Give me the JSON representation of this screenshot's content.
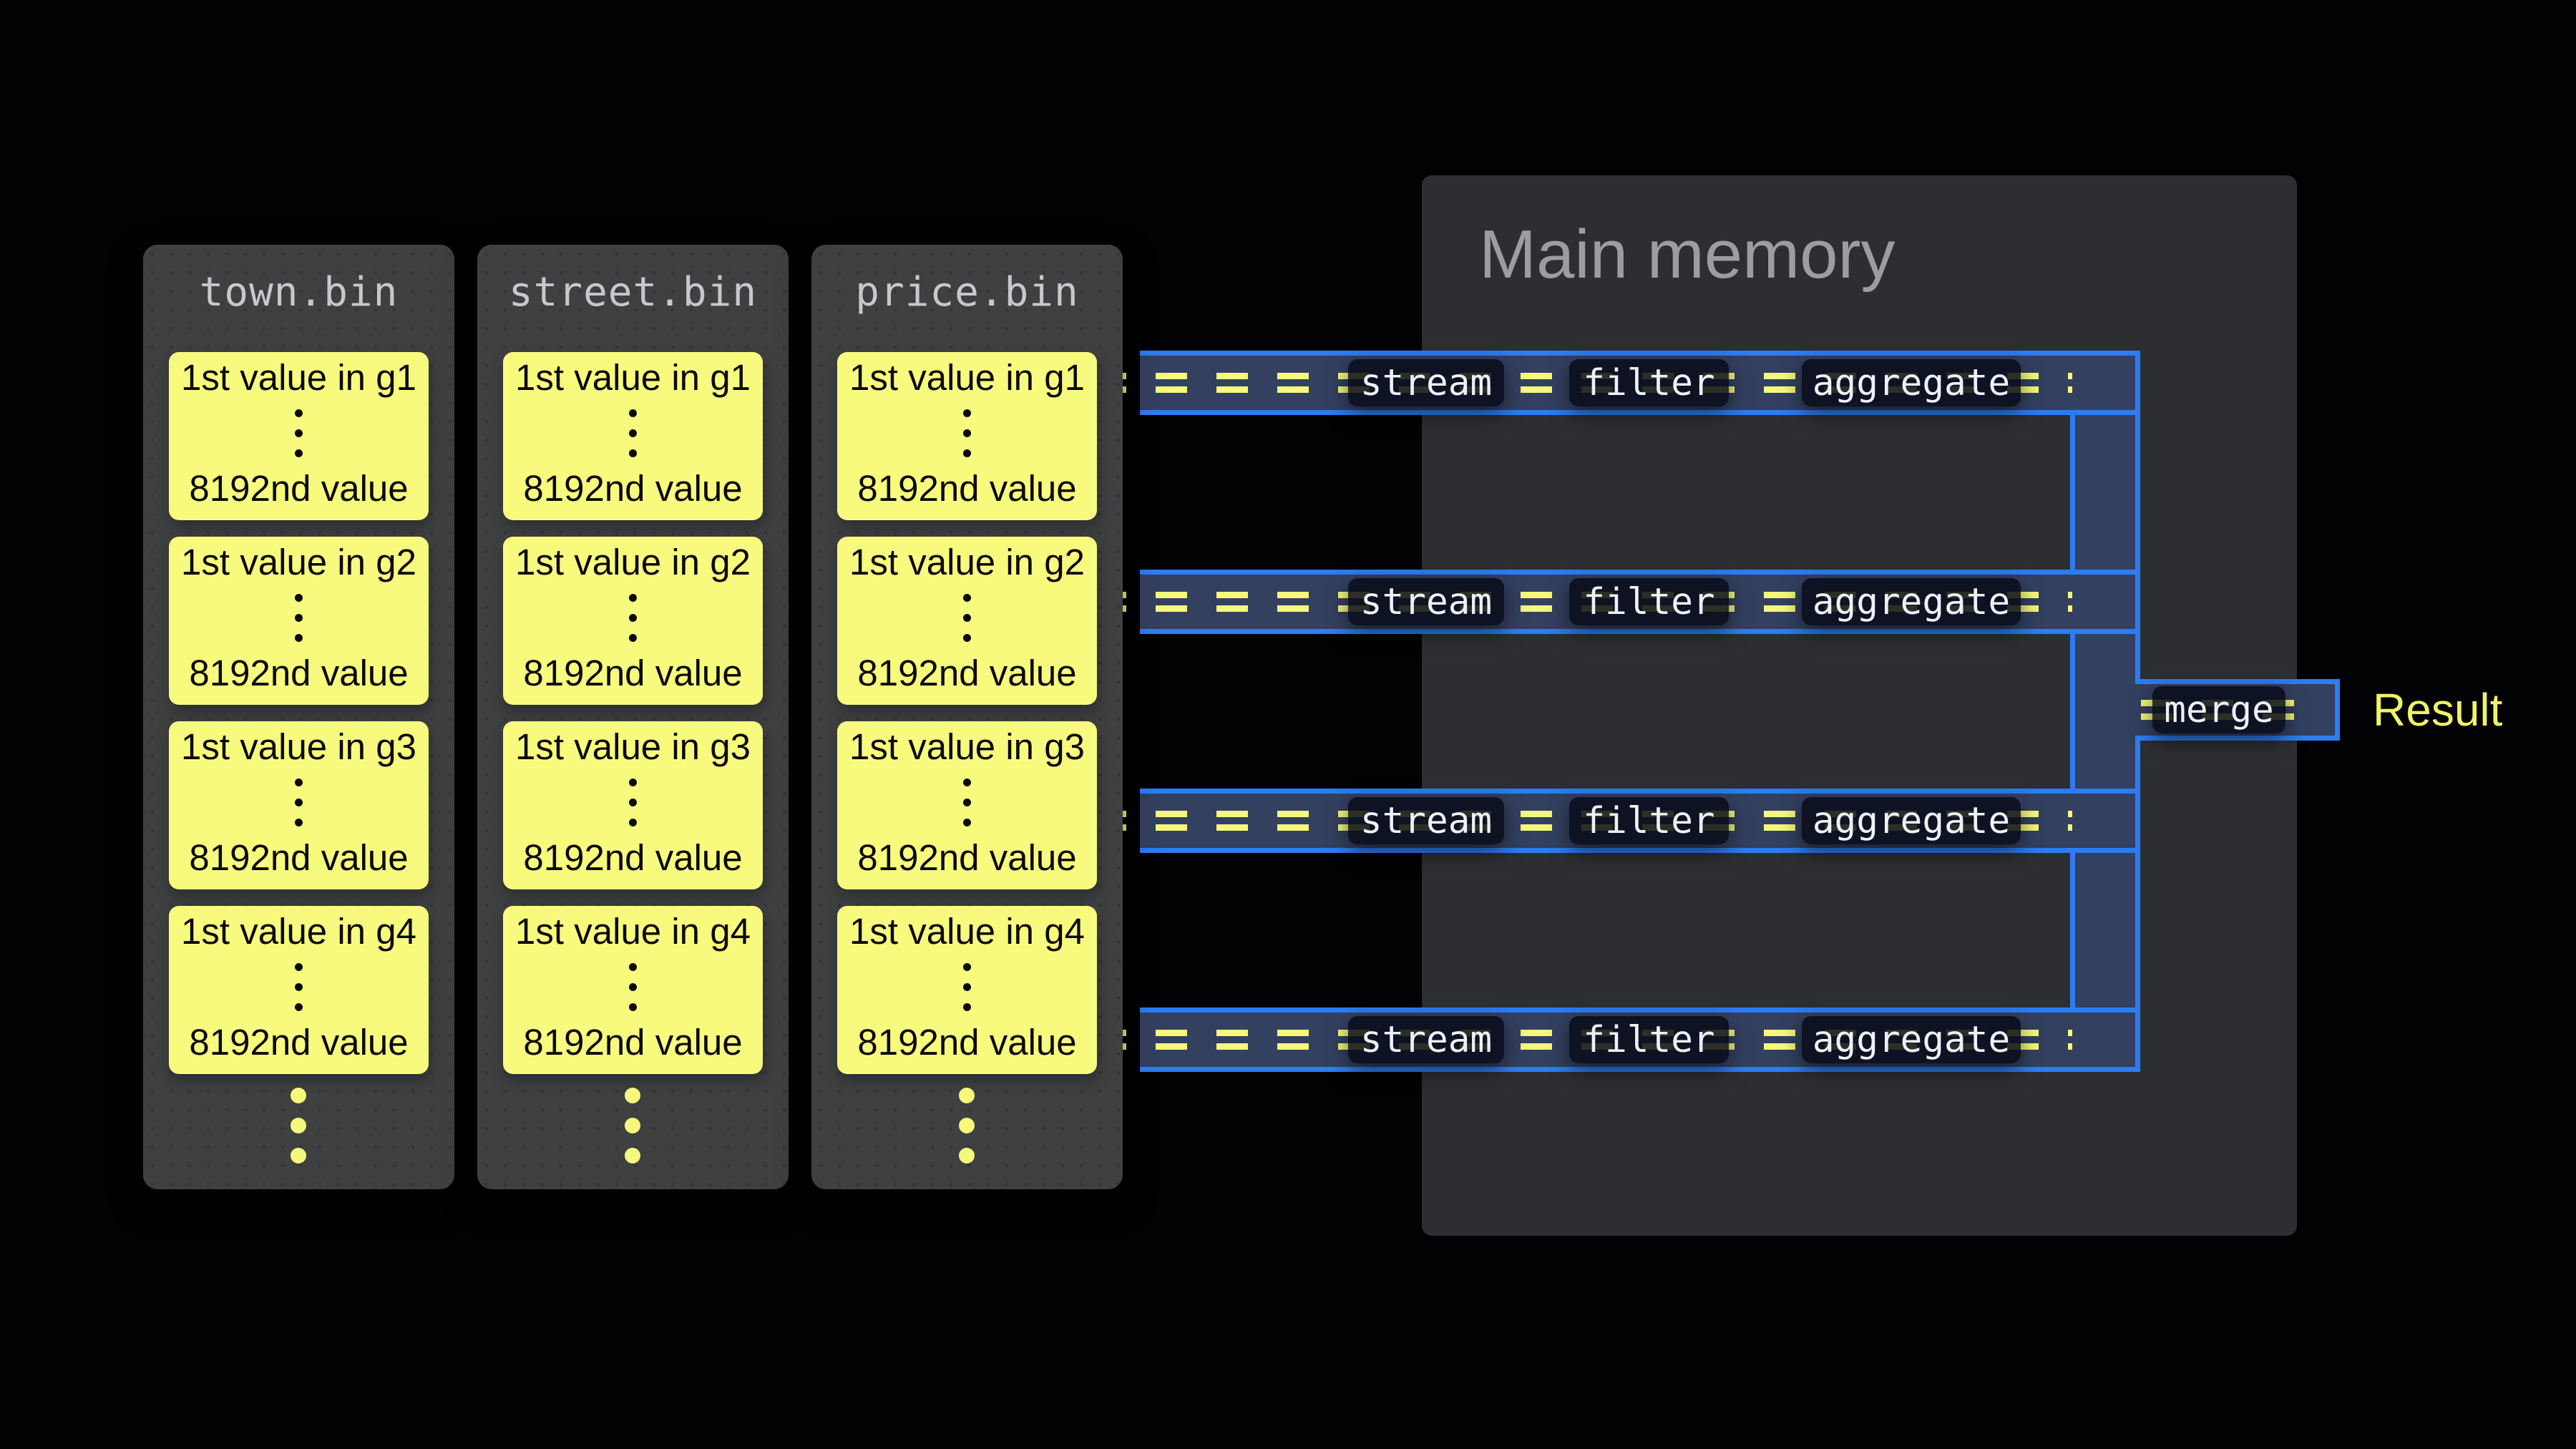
{
  "files": [
    {
      "name": "town.bin",
      "cards": [
        {
          "top": "1st value in g1",
          "bottom": "8192nd value"
        },
        {
          "top": "1st value in g2",
          "bottom": "8192nd value"
        },
        {
          "top": "1st value in g3",
          "bottom": "8192nd value"
        },
        {
          "top": "1st value in g4",
          "bottom": "8192nd value"
        }
      ]
    },
    {
      "name": "street.bin",
      "cards": [
        {
          "top": "1st value in g1",
          "bottom": "8192nd value"
        },
        {
          "top": "1st value in g2",
          "bottom": "8192nd value"
        },
        {
          "top": "1st value in g3",
          "bottom": "8192nd value"
        },
        {
          "top": "1st value in g4",
          "bottom": "8192nd value"
        }
      ]
    },
    {
      "name": "price.bin",
      "cards": [
        {
          "top": "1st value in g1",
          "bottom": "8192nd value"
        },
        {
          "top": "1st value in g2",
          "bottom": "8192nd value"
        },
        {
          "top": "1st value in g3",
          "bottom": "8192nd value"
        },
        {
          "top": "1st value in g4",
          "bottom": "8192nd value"
        }
      ]
    }
  ],
  "memory": {
    "title": "Main memory"
  },
  "pipeline": {
    "rows": [
      {
        "stages": [
          "stream",
          "filter",
          "aggregate"
        ]
      },
      {
        "stages": [
          "stream",
          "filter",
          "aggregate"
        ]
      },
      {
        "stages": [
          "stream",
          "filter",
          "aggregate"
        ]
      },
      {
        "stages": [
          "stream",
          "filter",
          "aggregate"
        ]
      }
    ],
    "merge_label": "merge",
    "result_label": "Result"
  },
  "colors": {
    "accent_blue": "#2c7cf2",
    "pipe_fill": "#344060",
    "dash_yellow": "#f5f87b",
    "card_yellow": "#f8fa7e",
    "result_yellow": "#f0f366",
    "file_panel_gray": "#3e4041",
    "memory_gray": "#2c2e31",
    "background": "#020204"
  }
}
